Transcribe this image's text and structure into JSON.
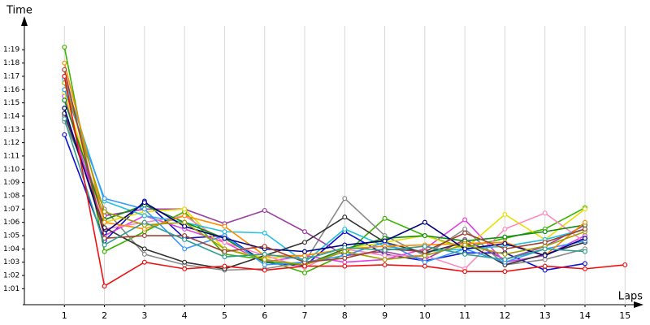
{
  "chart_data": {
    "type": "line",
    "x_label": "Laps",
    "y_label": "Time",
    "x": [
      1,
      2,
      3,
      4,
      5,
      6,
      7,
      8,
      9,
      10,
      11,
      12,
      13,
      14,
      15
    ],
    "xlim": [
      0,
      15.4
    ],
    "xticks": [
      1,
      2,
      3,
      4,
      5,
      6,
      7,
      8,
      9,
      10,
      11,
      12,
      13,
      14,
      15
    ],
    "ylim": [
      59.8,
      81.4
    ],
    "yticks": [
      {
        "value": 61,
        "label": "1:01"
      },
      {
        "value": 62,
        "label": "1:02"
      },
      {
        "value": 63,
        "label": "1:03"
      },
      {
        "value": 64,
        "label": "1:04"
      },
      {
        "value": 65,
        "label": "1:05"
      },
      {
        "value": 66,
        "label": "1:06"
      },
      {
        "value": 67,
        "label": "1:07"
      },
      {
        "value": 68,
        "label": "1:08"
      },
      {
        "value": 69,
        "label": "1:09"
      },
      {
        "value": 70,
        "label": "1:10"
      },
      {
        "value": 71,
        "label": "1:11"
      },
      {
        "value": 72,
        "label": "1:12"
      },
      {
        "value": 73,
        "label": "1:13"
      },
      {
        "value": 74,
        "label": "1:14"
      },
      {
        "value": 75,
        "label": "1:15"
      },
      {
        "value": 76,
        "label": "1:16"
      },
      {
        "value": 77,
        "label": "1:17"
      },
      {
        "value": 78,
        "label": "1:18"
      },
      {
        "value": 79,
        "label": "1:19"
      }
    ],
    "grid": true,
    "series": [
      {
        "color": "#3cb300",
        "values": [
          79.2,
          63.8,
          65.3,
          66.8,
          63.6,
          63.2,
          62.2,
          63.6,
          66.3,
          65.0,
          64.1,
          64.8,
          65.5,
          67.1,
          null
        ]
      },
      {
        "color": "#1010d0",
        "values": [
          72.6,
          64.6,
          67.6,
          64.8,
          65.0,
          63.0,
          62.7,
          65.3,
          63.6,
          63.1,
          63.7,
          63.7,
          62.4,
          62.9,
          null
        ]
      },
      {
        "color": "#8a8a8a",
        "values": [
          73.6,
          67.0,
          63.6,
          62.8,
          62.4,
          62.5,
          63.0,
          67.8,
          65.0,
          63.5,
          65.5,
          62.8,
          63.2,
          64.0,
          null
        ]
      },
      {
        "color": "#9b3fa0",
        "values": [
          74.0,
          66.5,
          67.0,
          67.0,
          65.9,
          66.9,
          65.3,
          63.5,
          63.8,
          63.2,
          64.7,
          63.2,
          64.2,
          65.8,
          null
        ]
      },
      {
        "color": "#e040e0",
        "values": [
          75.5,
          65.0,
          66.5,
          65.5,
          64.5,
          63.0,
          63.5,
          63.0,
          63.2,
          64.0,
          66.2,
          63.0,
          63.5,
          65.0,
          null
        ]
      },
      {
        "color": "#e8e000",
        "values": [
          75.8,
          66.0,
          66.8,
          67.0,
          64.0,
          63.3,
          63.5,
          64.0,
          64.5,
          65.0,
          64.0,
          66.6,
          64.7,
          67.0,
          null
        ]
      },
      {
        "color": "#ff88bb",
        "values": [
          77.0,
          65.5,
          66.0,
          66.5,
          64.5,
          63.5,
          62.6,
          64.0,
          63.5,
          63.5,
          62.5,
          65.5,
          66.7,
          64.5,
          null
        ]
      },
      {
        "color": "#20c0e0",
        "values": [
          76.8,
          67.6,
          66.5,
          66.0,
          65.3,
          65.2,
          63.0,
          65.5,
          64.2,
          63.8,
          64.0,
          64.2,
          64.7,
          65.5,
          null
        ]
      },
      {
        "color": "#333333",
        "values": [
          74.2,
          65.6,
          64.0,
          63.0,
          62.5,
          63.5,
          64.5,
          66.4,
          64.5,
          63.7,
          64.5,
          62.8,
          63.6,
          64.5,
          null
        ]
      },
      {
        "color": "#108a10",
        "values": [
          75.2,
          66.2,
          67.3,
          66.0,
          64.8,
          63.0,
          62.8,
          64.0,
          64.8,
          65.0,
          64.6,
          64.9,
          65.3,
          65.8,
          null
        ]
      },
      {
        "color": "#3399ff",
        "values": [
          76.0,
          67.8,
          67.0,
          64.0,
          65.0,
          62.8,
          63.0,
          63.5,
          64.5,
          63.0,
          64.0,
          63.0,
          64.0,
          64.6,
          null
        ]
      },
      {
        "color": "#ff8c00",
        "values": [
          78.0,
          66.0,
          65.5,
          66.5,
          65.7,
          63.5,
          63.5,
          64.0,
          64.2,
          64.3,
          64.4,
          64.5,
          63.5,
          66.0,
          null
        ]
      },
      {
        "color": "#000080",
        "values": [
          74.6,
          65.2,
          67.5,
          65.7,
          64.8,
          64.0,
          63.8,
          64.3,
          64.6,
          66.0,
          64.0,
          64.4,
          63.5,
          64.8,
          null
        ]
      },
      {
        "color": "#a0a000",
        "values": [
          76.5,
          66.8,
          65.8,
          66.0,
          64.0,
          63.2,
          62.8,
          63.8,
          63.2,
          63.5,
          64.3,
          63.6,
          64.2,
          65.3,
          null
        ]
      },
      {
        "color": "#a04030",
        "values": [
          77.5,
          64.8,
          65.0,
          65.0,
          63.8,
          64.2,
          63.0,
          63.3,
          64.0,
          63.8,
          65.2,
          64.0,
          64.5,
          65.5,
          null
        ]
      },
      {
        "color": "#30a090",
        "values": [
          73.8,
          64.3,
          66.0,
          64.7,
          63.4,
          63.6,
          63.2,
          64.1,
          63.9,
          64.2,
          63.6,
          63.2,
          64.0,
          63.8,
          null
        ]
      },
      {
        "color": "#ee1111",
        "values": [
          77.0,
          61.2,
          63.0,
          62.5,
          62.7,
          62.4,
          62.7,
          62.7,
          62.8,
          62.7,
          62.3,
          62.3,
          62.7,
          62.5,
          62.8
        ]
      }
    ]
  }
}
